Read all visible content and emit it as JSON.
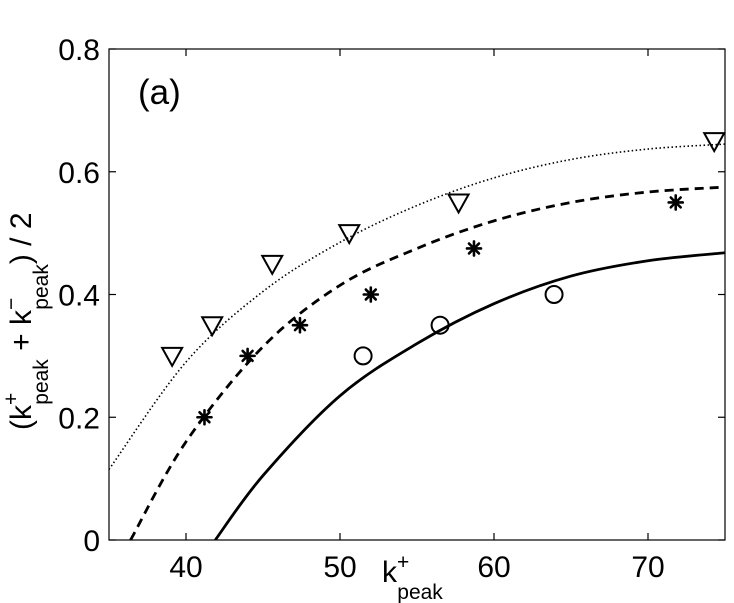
{
  "chart_data": {
    "type": "scatter",
    "panel_label": "(a)",
    "xlabel": {
      "base": "k",
      "sup": "+",
      "sub": "peak"
    },
    "ylabel": {
      "open": "(k",
      "sup1": "+",
      "sub1": "peak",
      "plus": " + k",
      "sup2": "−",
      "sub2": "peak",
      "close": ") / 2"
    },
    "xlim": [
      35,
      75
    ],
    "ylim": [
      0,
      0.8
    ],
    "xticks": [
      40,
      50,
      60,
      70
    ],
    "xtick_labels": [
      "40",
      "50",
      "60",
      "70"
    ],
    "yticks": [
      0,
      0.2,
      0.4,
      0.6,
      0.8
    ],
    "ytick_labels": [
      "0",
      "0.2",
      "0.4",
      "0.6",
      "0.8"
    ],
    "series": [
      {
        "name": "triangles",
        "marker": "triangle-down",
        "x": [
          39.1,
          41.7,
          45.6,
          50.6,
          57.7,
          74.3
        ],
        "y": [
          0.3,
          0.35,
          0.45,
          0.5,
          0.55,
          0.65
        ]
      },
      {
        "name": "asterisks",
        "marker": "asterisk",
        "x": [
          41.2,
          44.0,
          47.4,
          52.0,
          58.7,
          71.8
        ],
        "y": [
          0.2,
          0.3,
          0.35,
          0.4,
          0.475,
          0.55
        ]
      },
      {
        "name": "circles",
        "marker": "circle",
        "x": [
          51.5,
          56.5,
          63.9
        ],
        "y": [
          0.3,
          0.35,
          0.4
        ]
      }
    ],
    "curves": [
      {
        "name": "dotted-fit",
        "style": "dotted",
        "x": [
          35,
          40,
          45,
          50,
          55,
          60,
          65,
          70,
          75
        ],
        "y": [
          0.115,
          0.29,
          0.405,
          0.485,
          0.545,
          0.59,
          0.62,
          0.637,
          0.645
        ]
      },
      {
        "name": "dashed-fit",
        "style": "dashed",
        "x": [
          36.4,
          40,
          45,
          50,
          55,
          60,
          65,
          70,
          75
        ],
        "y": [
          0.0,
          0.16,
          0.315,
          0.415,
          0.475,
          0.52,
          0.55,
          0.567,
          0.575
        ]
      },
      {
        "name": "solid-fit",
        "style": "solid",
        "x": [
          41.9,
          45,
          50,
          55,
          60,
          65,
          70,
          75
        ],
        "y": [
          0.0,
          0.105,
          0.235,
          0.32,
          0.385,
          0.43,
          0.455,
          0.468
        ]
      }
    ]
  }
}
